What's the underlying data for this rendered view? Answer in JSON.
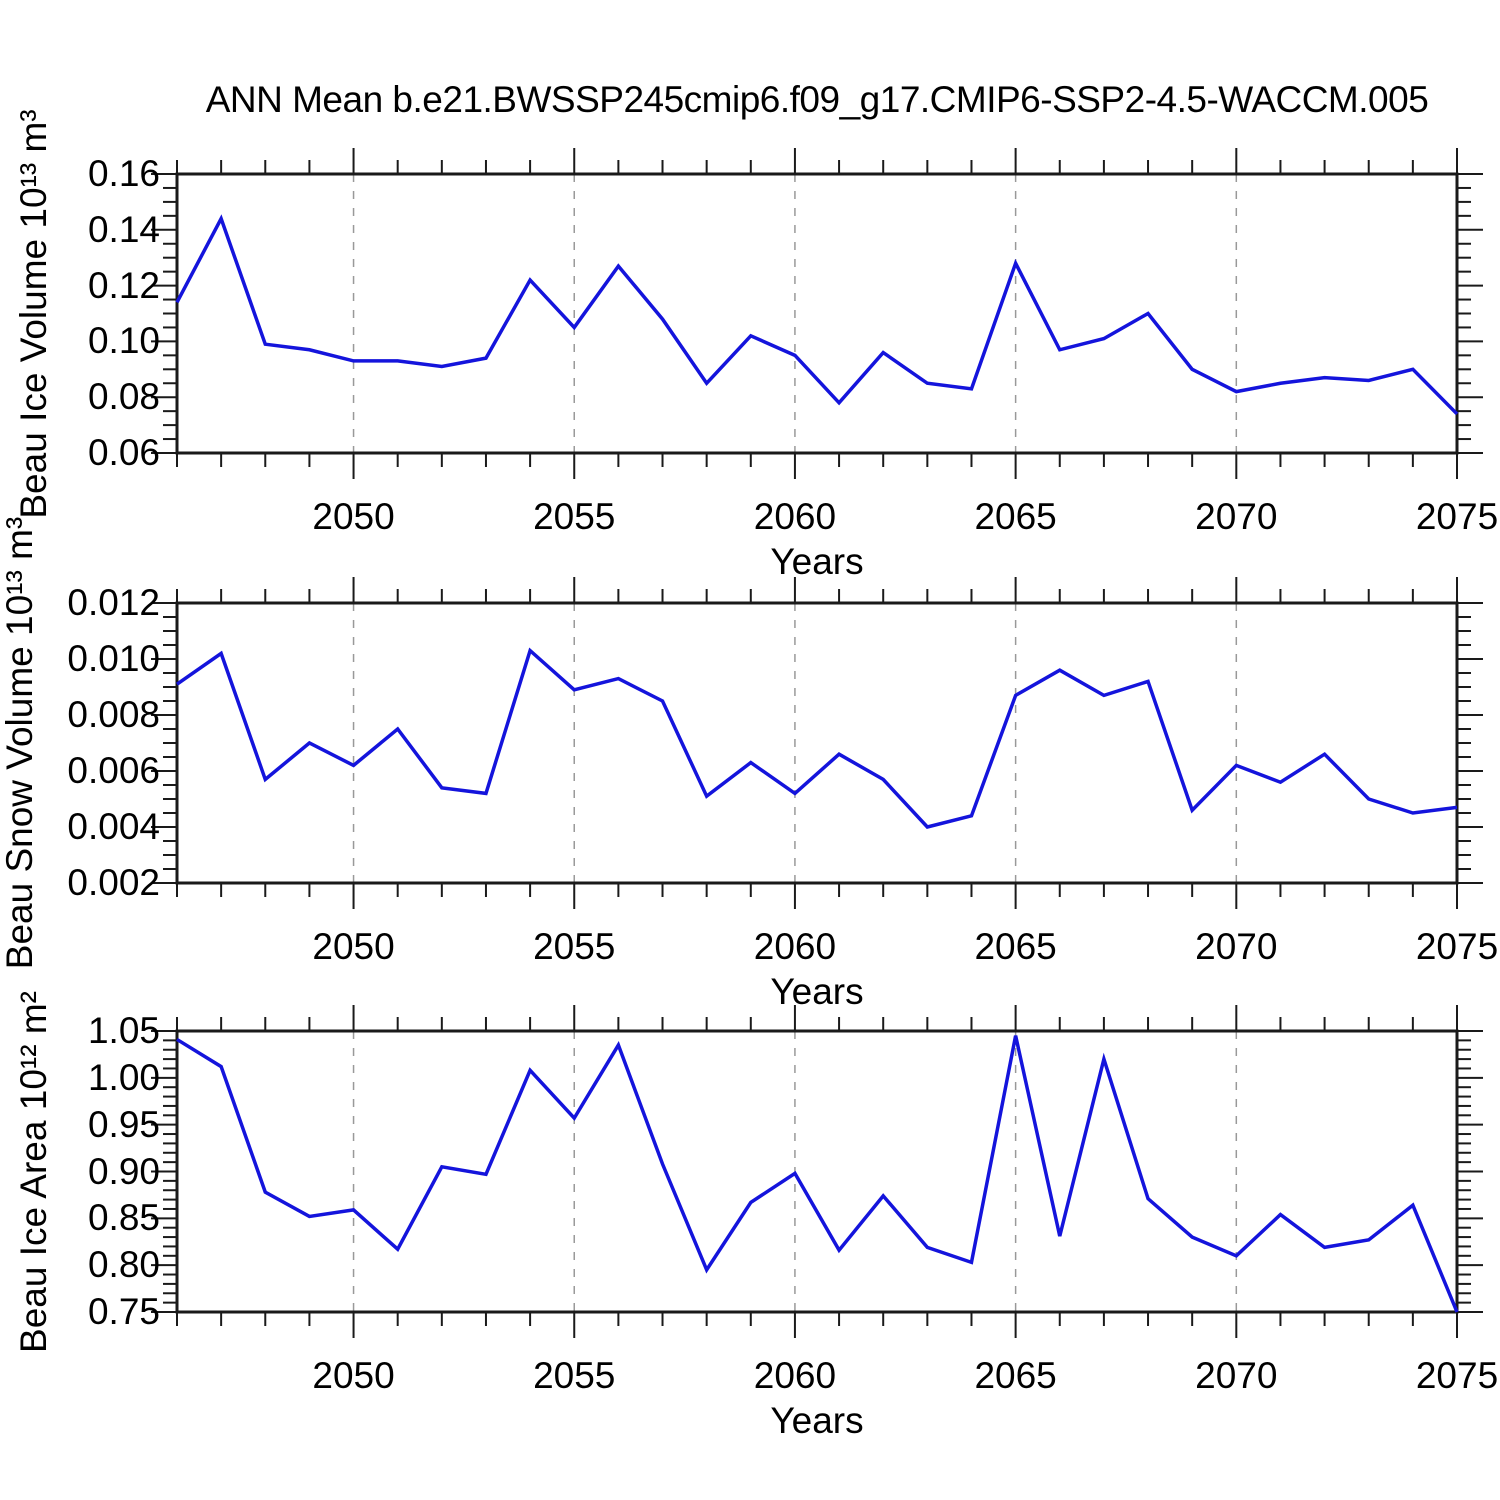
{
  "title": "ANN Mean b.e21.BWSSP245cmip6.f09_g17.CMIP6-SSP2-4.5-WACCM.005",
  "colors": {
    "line": "#1414dc",
    "axis": "#1a1a1a",
    "grid": "#999999",
    "background": "#ffffff",
    "text": "#000000"
  },
  "x_axis": {
    "label": "Years",
    "range": [
      2046,
      2075
    ],
    "major_ticks": [
      2050,
      2055,
      2060,
      2065,
      2070,
      2075
    ],
    "major_tick_labels": [
      "2050",
      "2055",
      "2060",
      "2065",
      "2070",
      "2075"
    ],
    "minor_step": 1,
    "gridlines": [
      2050,
      2055,
      2060,
      2065,
      2070
    ]
  },
  "chart_data": [
    {
      "type": "line",
      "name": "beau-ice-volume-series",
      "ylabel": "Beau Ice Volume 10¹³ m³",
      "xlabel": "Years",
      "ylim": [
        0.06,
        0.16
      ],
      "yticks": [
        0.16,
        0.14,
        0.12,
        0.1,
        0.08,
        0.06
      ],
      "ytick_labels": [
        "0.16",
        "0.14",
        "0.12",
        "0.10",
        "0.08",
        "0.06"
      ],
      "yminor_step": 0.005,
      "grid": "vertical-dashed",
      "legend": "none",
      "x": [
        2046,
        2047,
        2048,
        2049,
        2050,
        2051,
        2052,
        2053,
        2054,
        2055,
        2056,
        2057,
        2058,
        2059,
        2060,
        2061,
        2062,
        2063,
        2064,
        2065,
        2066,
        2067,
        2068,
        2069,
        2070,
        2071,
        2072,
        2073,
        2074,
        2075
      ],
      "values": [
        0.114,
        0.144,
        0.099,
        0.097,
        0.093,
        0.093,
        0.091,
        0.094,
        0.122,
        0.105,
        0.127,
        0.108,
        0.085,
        0.102,
        0.095,
        0.078,
        0.096,
        0.085,
        0.083,
        0.128,
        0.097,
        0.101,
        0.11,
        0.09,
        0.082,
        0.085,
        0.087,
        0.086,
        0.09,
        0.074
      ]
    },
    {
      "type": "line",
      "name": "beau-snow-volume-series",
      "ylabel": "Beau Snow Volume 10¹³ m³",
      "xlabel": "Years",
      "ylim": [
        0.002,
        0.012
      ],
      "yticks": [
        0.012,
        0.01,
        0.008,
        0.006,
        0.004,
        0.002
      ],
      "ytick_labels": [
        "0.012",
        "0.010",
        "0.008",
        "0.006",
        "0.004",
        "0.002"
      ],
      "yminor_step": 0.0005,
      "grid": "vertical-dashed",
      "legend": "none",
      "x": [
        2046,
        2047,
        2048,
        2049,
        2050,
        2051,
        2052,
        2053,
        2054,
        2055,
        2056,
        2057,
        2058,
        2059,
        2060,
        2061,
        2062,
        2063,
        2064,
        2065,
        2066,
        2067,
        2068,
        2069,
        2070,
        2071,
        2072,
        2073,
        2074,
        2075
      ],
      "values": [
        0.0091,
        0.0102,
        0.0057,
        0.007,
        0.0062,
        0.0075,
        0.0054,
        0.0052,
        0.0103,
        0.0089,
        0.0093,
        0.0085,
        0.0051,
        0.0063,
        0.0052,
        0.0066,
        0.0057,
        0.004,
        0.0044,
        0.0087,
        0.0096,
        0.0087,
        0.0092,
        0.0046,
        0.0062,
        0.0056,
        0.0066,
        0.005,
        0.0045,
        0.0047
      ]
    },
    {
      "type": "line",
      "name": "beau-ice-area-series",
      "ylabel": "Beau Ice Area 10¹² m²",
      "xlabel": "Years",
      "ylim": [
        0.75,
        1.05
      ],
      "yticks": [
        1.05,
        1.0,
        0.95,
        0.9,
        0.85,
        0.8,
        0.75
      ],
      "ytick_labels": [
        "1.05",
        "1.00",
        "0.95",
        "0.90",
        "0.85",
        "0.80",
        "0.75"
      ],
      "yminor_step": 0.01,
      "grid": "vertical-dashed",
      "legend": "none",
      "x": [
        2046,
        2047,
        2048,
        2049,
        2050,
        2051,
        2052,
        2053,
        2054,
        2055,
        2056,
        2057,
        2058,
        2059,
        2060,
        2061,
        2062,
        2063,
        2064,
        2065,
        2066,
        2067,
        2068,
        2069,
        2070,
        2071,
        2072,
        2073,
        2074,
        2075
      ],
      "values": [
        1.041,
        1.012,
        0.878,
        0.852,
        0.859,
        0.817,
        0.905,
        0.897,
        1.008,
        0.957,
        1.035,
        0.908,
        0.795,
        0.867,
        0.898,
        0.816,
        0.874,
        0.819,
        0.803,
        1.045,
        0.831,
        1.02,
        0.871,
        0.83,
        0.81,
        0.854,
        0.819,
        0.827,
        0.864,
        0.75
      ]
    }
  ]
}
